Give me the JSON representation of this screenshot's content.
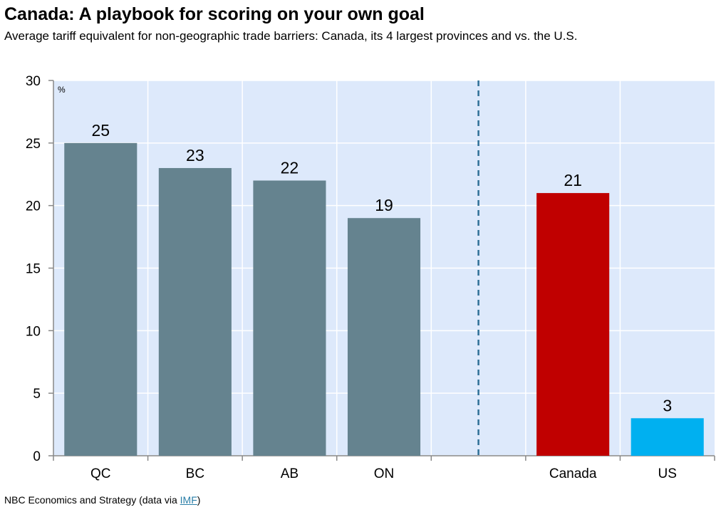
{
  "header": {
    "title": "Canada: A playbook for scoring on your own goal",
    "subtitle": "Average tariff equivalent for non-geographic trade barriers: Canada, its 4 largest provinces and vs. the U.S."
  },
  "footer": {
    "source_text": "NBC Economics and Strategy (data via ",
    "link_text": "IMF",
    "close": ")"
  },
  "chart_data": {
    "type": "bar",
    "title": "Canada: A playbook for scoring on your own goal",
    "ylabel": "%",
    "xlabel": "",
    "ylim": [
      0,
      30
    ],
    "yticks": [
      0,
      5,
      10,
      15,
      20,
      25,
      30
    ],
    "grid": true,
    "categories": [
      "QC",
      "BC",
      "AB",
      "ON",
      "",
      "Canada",
      "US"
    ],
    "values": [
      25,
      23,
      22,
      19,
      null,
      21,
      3
    ],
    "colors": [
      "#65838f",
      "#65838f",
      "#65838f",
      "#65838f",
      null,
      "#c00000",
      "#00b0f0"
    ],
    "separator_after_category_index": 3,
    "plot_background": "#dde9fb",
    "separator_color": "#2e6f96"
  }
}
